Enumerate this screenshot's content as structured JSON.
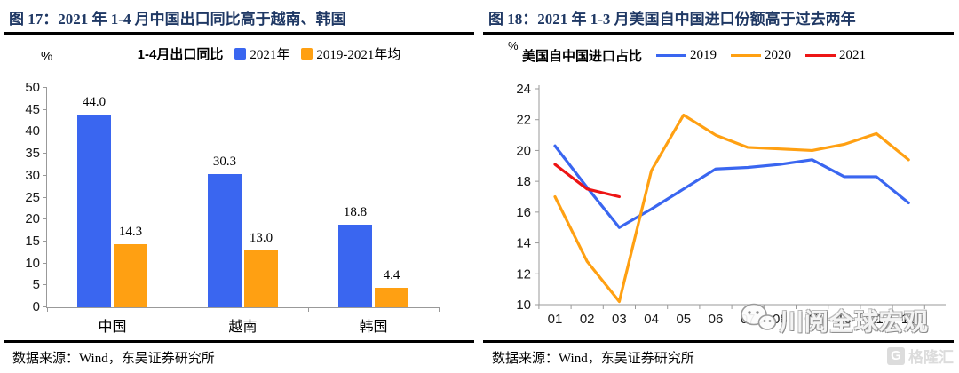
{
  "colors": {
    "blue": "#3a66f0",
    "orange": "#ffa012",
    "red": "#ed1515",
    "title_navy": "#1f3864",
    "axis_gray": "#999999",
    "rule_black": "#000000"
  },
  "panels": [
    {
      "figure_title": "图 17：2021 年 1-4 月中国出口同比高于越南、韩国",
      "source": "数据来源：Wind，东吴证券研究所"
    },
    {
      "figure_title": "图 18：2021 年 1-3 月美国自中国进口份额高于过去两年",
      "source": "数据来源：Wind，东吴证券研究所"
    }
  ],
  "watermark": {
    "text": "川阅全球宏观",
    "logo_letter": "G",
    "logo_text": "格隆汇"
  },
  "chart_data": [
    {
      "type": "bar",
      "title": "1-4月出口同比",
      "unit": "%",
      "categories": [
        "中国",
        "越南",
        "韩国"
      ],
      "series": [
        {
          "name": "2021年",
          "color_key": "blue",
          "values": [
            44.0,
            30.3,
            18.8
          ]
        },
        {
          "name": "2019-2021年均",
          "color_key": "orange",
          "values": [
            14.3,
            13.0,
            4.4
          ]
        }
      ],
      "ylim": [
        0,
        50
      ],
      "ytick_step": 5,
      "grid": false,
      "legend_position": "top",
      "data_labels": true
    },
    {
      "type": "line",
      "title": "美国自中国进口占比",
      "unit": "%",
      "x": [
        "01",
        "02",
        "03",
        "04",
        "05",
        "06",
        "07",
        "08",
        "09",
        "10",
        "11",
        "12"
      ],
      "series": [
        {
          "name": "2019",
          "color_key": "blue",
          "values": [
            20.3,
            17.6,
            15.0,
            16.2,
            17.5,
            18.8,
            18.9,
            19.1,
            19.4,
            18.3,
            18.3,
            16.6
          ]
        },
        {
          "name": "2020",
          "color_key": "orange",
          "values": [
            17.0,
            12.8,
            10.2,
            18.7,
            22.3,
            21.0,
            20.2,
            20.1,
            20.0,
            20.4,
            21.1,
            19.4
          ]
        },
        {
          "name": "2021",
          "color_key": "red",
          "values": [
            19.1,
            17.5,
            17.0
          ]
        }
      ],
      "ylim": [
        10,
        24
      ],
      "ytick_step": 2,
      "grid": false,
      "legend_position": "top"
    }
  ]
}
